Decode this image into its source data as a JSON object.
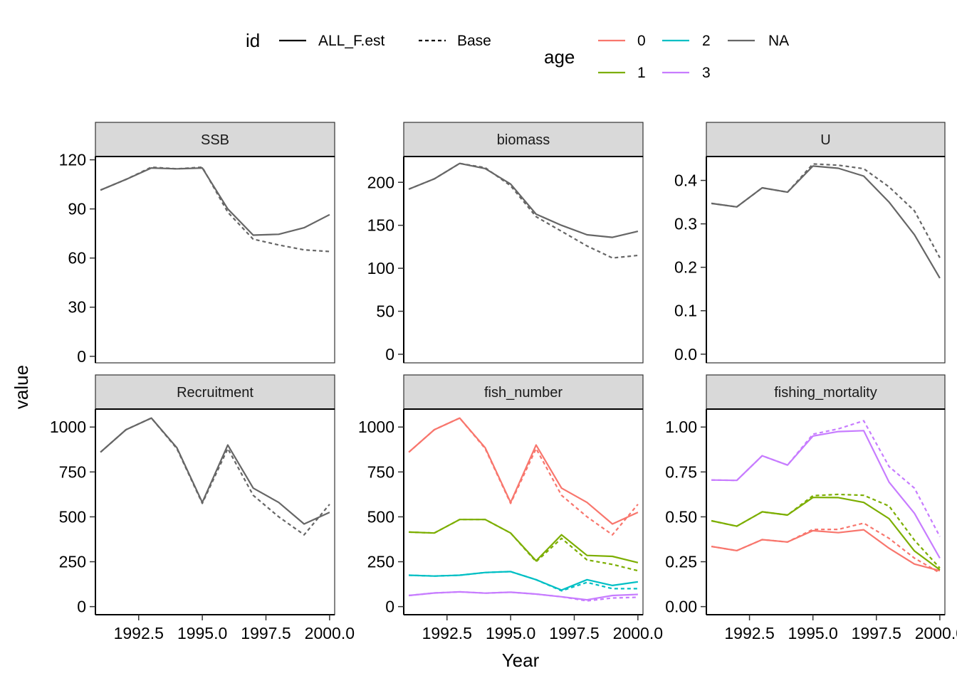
{
  "chart_data": {
    "type": "line",
    "xlabel": "Year",
    "ylabel": "value",
    "x": [
      1991,
      1992,
      1993,
      1994,
      1995,
      1996,
      1997,
      1998,
      1999,
      2000
    ],
    "xlim": [
      1990.8,
      2000.2
    ],
    "xticks": [
      "1992.5",
      "1995.0",
      "1997.5",
      "2000.0"
    ],
    "colors": {
      "age_0": "#F8766D",
      "age_1": "#7CAE00",
      "age_2": "#00BFC4",
      "age_3": "#C77CFF",
      "NA": "#666666"
    },
    "legend": {
      "id_title": "id",
      "id_items": [
        {
          "label": "ALL_F.est",
          "linetype": "solid"
        },
        {
          "label": "Base",
          "linetype": "dashed"
        }
      ],
      "age_title": "age",
      "age_items": [
        {
          "label": "0",
          "color": "#F8766D"
        },
        {
          "label": "2",
          "color": "#00BFC4"
        },
        {
          "label": "NA",
          "color": "#666666"
        },
        {
          "label": "1",
          "color": "#7CAE00"
        },
        {
          "label": "3",
          "color": "#C77CFF"
        }
      ],
      "placement": "top"
    },
    "panels": [
      {
        "title": "SSB",
        "ylim": [
          -4,
          122
        ],
        "yticks": [
          0,
          30,
          60,
          90,
          120
        ],
        "ytick_labels": [
          "0",
          "30",
          "60",
          "90",
          "120"
        ],
        "series": [
          {
            "id": "ALL_F.est",
            "age": "NA",
            "values": [
              101.5,
              108,
              115,
              114.5,
              115,
              90,
              74,
              74.5,
              78.5,
              86.5
            ]
          },
          {
            "id": "Base",
            "age": "NA",
            "values": [
              101.5,
              108,
              115.5,
              114.5,
              115.5,
              88,
              71.5,
              68,
              65,
              64
            ]
          }
        ]
      },
      {
        "title": "biomass",
        "ylim": [
          -10,
          230
        ],
        "yticks": [
          0,
          50,
          100,
          150,
          200
        ],
        "ytick_labels": [
          "0",
          "50",
          "100",
          "150",
          "200"
        ],
        "series": [
          {
            "id": "ALL_F.est",
            "age": "NA",
            "values": [
              192,
              204,
              222,
              216,
              198,
              163,
              150,
              139,
              136,
              143
            ]
          },
          {
            "id": "Base",
            "age": "NA",
            "values": [
              192,
              204,
              222,
              217,
              196,
              160,
              143,
              126,
              112,
              115
            ]
          }
        ]
      },
      {
        "title": "U",
        "ylim": [
          -0.02,
          0.455
        ],
        "yticks": [
          0,
          0.1,
          0.2,
          0.3,
          0.4
        ],
        "ytick_labels": [
          "0.0",
          "0.1",
          "0.2",
          "0.3",
          "0.4"
        ],
        "series": [
          {
            "id": "ALL_F.est",
            "age": "NA",
            "values": [
              0.347,
              0.339,
              0.383,
              0.373,
              0.433,
              0.428,
              0.41,
              0.35,
              0.275,
              0.175
            ]
          },
          {
            "id": "Base",
            "age": "NA",
            "values": [
              0.347,
              0.339,
              0.383,
              0.373,
              0.438,
              0.435,
              0.427,
              0.385,
              0.33,
              0.222
            ]
          }
        ]
      },
      {
        "title": "Recruitment",
        "ylim": [
          -45,
          1100
        ],
        "yticks": [
          0,
          250,
          500,
          750,
          1000
        ],
        "ytick_labels": [
          "0",
          "250",
          "500",
          "750",
          "1000"
        ],
        "series": [
          {
            "id": "ALL_F.est",
            "age": "NA",
            "values": [
              860,
              985,
              1050,
              885,
              580,
              900,
              660,
              580,
              460,
              525
            ]
          },
          {
            "id": "Base",
            "age": "NA",
            "values": [
              860,
              985,
              1050,
              880,
              575,
              880,
              620,
              500,
              400,
              570
            ]
          }
        ]
      },
      {
        "title": "fish_number",
        "ylim": [
          -45,
          1100
        ],
        "yticks": [
          0,
          250,
          500,
          750,
          1000
        ],
        "ytick_labels": [
          "0",
          "250",
          "500",
          "750",
          "1000"
        ],
        "series": [
          {
            "id": "ALL_F.est",
            "age": "0",
            "values": [
              860,
              985,
              1050,
              885,
              580,
              900,
              660,
              580,
              460,
              525
            ]
          },
          {
            "id": "Base",
            "age": "0",
            "values": [
              860,
              985,
              1050,
              880,
              575,
              880,
              620,
              500,
              400,
              570
            ]
          },
          {
            "id": "ALL_F.est",
            "age": "1",
            "values": [
              415,
              410,
              485,
              485,
              410,
              255,
              400,
              285,
              280,
              245
            ]
          },
          {
            "id": "Base",
            "age": "1",
            "values": [
              415,
              410,
              485,
              485,
              410,
              250,
              380,
              260,
              235,
              200
            ]
          },
          {
            "id": "ALL_F.est",
            "age": "2",
            "values": [
              175,
              170,
              175,
              190,
              195,
              150,
              92,
              150,
              118,
              138
            ]
          },
          {
            "id": "Base",
            "age": "2",
            "values": [
              175,
              170,
              175,
              190,
              195,
              150,
              88,
              135,
              100,
              100
            ]
          },
          {
            "id": "ALL_F.est",
            "age": "3",
            "values": [
              62,
              76,
              82,
              75,
              80,
              70,
              55,
              38,
              62,
              68
            ]
          },
          {
            "id": "Base",
            "age": "3",
            "values": [
              62,
              76,
              82,
              75,
              80,
              70,
              55,
              32,
              48,
              52
            ]
          }
        ]
      },
      {
        "title": "fishing_mortality",
        "ylim": [
          -0.045,
          1.1
        ],
        "yticks": [
          0,
          0.25,
          0.5,
          0.75,
          1.0
        ],
        "ytick_labels": [
          "0.00",
          "0.25",
          "0.50",
          "0.75",
          "1.00"
        ],
        "series": [
          {
            "id": "ALL_F.est",
            "age": "0",
            "values": [
              0.335,
              0.312,
              0.373,
              0.36,
              0.423,
              0.412,
              0.428,
              0.325,
              0.237,
              0.2
            ]
          },
          {
            "id": "Base",
            "age": "0",
            "values": [
              0.335,
              0.312,
              0.373,
              0.36,
              0.43,
              0.43,
              0.465,
              0.38,
              0.27,
              0.188
            ]
          },
          {
            "id": "ALL_F.est",
            "age": "1",
            "values": [
              0.478,
              0.448,
              0.528,
              0.51,
              0.608,
              0.607,
              0.58,
              0.49,
              0.31,
              0.205
            ]
          },
          {
            "id": "Base",
            "age": "1",
            "values": [
              0.478,
              0.448,
              0.528,
              0.51,
              0.618,
              0.625,
              0.62,
              0.56,
              0.37,
              0.215
            ]
          },
          {
            "id": "ALL_F.est",
            "age": "3",
            "values": [
              0.705,
              0.703,
              0.84,
              0.788,
              0.95,
              0.975,
              0.98,
              0.693,
              0.52,
              0.27
            ]
          },
          {
            "id": "Base",
            "age": "3",
            "values": [
              0.705,
              0.703,
              0.84,
              0.788,
              0.96,
              0.99,
              1.035,
              0.78,
              0.66,
              0.39
            ]
          }
        ]
      }
    ]
  }
}
